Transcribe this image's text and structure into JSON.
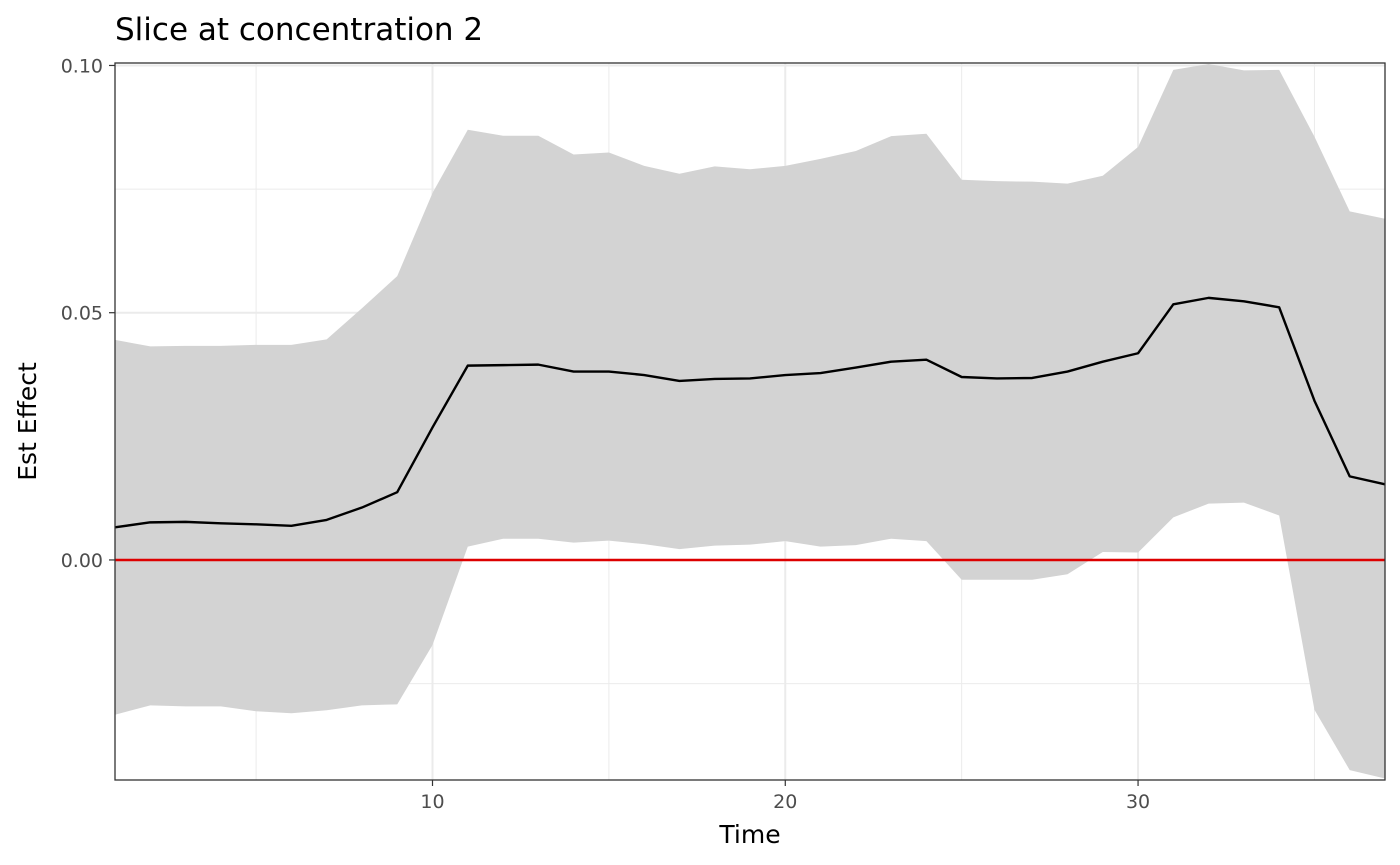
{
  "chart_data": {
    "type": "line",
    "title": "Slice at concentration 2",
    "xlabel": "Time",
    "ylabel": "Est Effect",
    "xlim": [
      1,
      37
    ],
    "ylim": [
      -0.0445,
      0.1005
    ],
    "x_ticks": [
      10,
      20,
      30
    ],
    "x_tick_labels": [
      "10",
      "20",
      "30"
    ],
    "y_ticks": [
      0.0,
      0.05,
      0.1
    ],
    "y_tick_labels": [
      "0.00",
      "0.05",
      "0.10"
    ],
    "grid": true,
    "legend": "none",
    "reference_line": {
      "y": 0.0,
      "color": "#dd0000"
    },
    "colors": {
      "line": "#000000",
      "ribbon": "#d3d3d3",
      "panel_border": "#333333"
    },
    "series": [
      {
        "x": [
          1,
          2,
          3,
          4,
          5,
          6,
          7,
          8,
          9,
          10,
          11,
          12,
          13,
          14,
          15,
          16,
          17,
          18,
          19,
          20,
          21,
          22,
          23,
          24,
          25,
          26,
          27,
          28,
          29,
          30,
          31,
          32,
          33,
          34,
          35,
          36,
          37
        ],
        "estimate": [
          0.0066,
          0.0076,
          0.0077,
          0.0074,
          0.0072,
          0.0069,
          0.0081,
          0.0106,
          0.0137,
          0.0268,
          0.0393,
          0.0394,
          0.0395,
          0.0381,
          0.0381,
          0.0374,
          0.0362,
          0.0366,
          0.0367,
          0.0374,
          0.0378,
          0.0389,
          0.0401,
          0.0405,
          0.037,
          0.0367,
          0.0368,
          0.0381,
          0.0401,
          0.0418,
          0.0517,
          0.053,
          0.0523,
          0.0511,
          0.0322,
          0.0169,
          0.0153
        ],
        "lower": [
          -0.0313,
          -0.0294,
          -0.0296,
          -0.0296,
          -0.0306,
          -0.031,
          -0.0304,
          -0.0294,
          -0.0292,
          -0.0172,
          0.0027,
          0.0043,
          0.0043,
          0.0035,
          0.0039,
          0.0032,
          0.0022,
          0.0029,
          0.0031,
          0.0038,
          0.0027,
          0.003,
          0.0043,
          0.0038,
          -0.004,
          -0.004,
          -0.004,
          -0.0029,
          0.0016,
          0.0015,
          0.0086,
          0.0114,
          0.0116,
          0.009,
          -0.0303,
          -0.0425,
          -0.0442
        ],
        "upper": [
          0.0445,
          0.0432,
          0.0433,
          0.0433,
          0.0435,
          0.0435,
          0.0446,
          0.0509,
          0.0574,
          0.0742,
          0.087,
          0.0858,
          0.0858,
          0.082,
          0.0824,
          0.0797,
          0.0781,
          0.0796,
          0.079,
          0.0797,
          0.0811,
          0.0827,
          0.0857,
          0.0862,
          0.0769,
          0.0766,
          0.0765,
          0.0761,
          0.0777,
          0.0835,
          0.0991,
          0.1003,
          0.099,
          0.0991,
          0.0856,
          0.0705,
          0.069
        ]
      }
    ]
  }
}
